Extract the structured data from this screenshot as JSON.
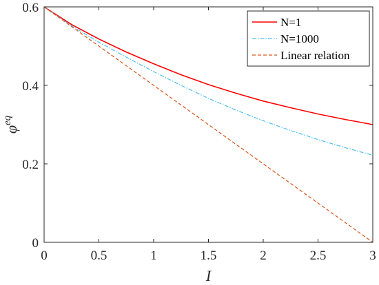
{
  "chart_data": {
    "type": "line",
    "xlabel": "I",
    "ylabel": "φ",
    "ylabel_superscript": "eq",
    "xlim": [
      0,
      3
    ],
    "ylim": [
      0,
      0.6
    ],
    "xticks": [
      0,
      0.5,
      1,
      1.5,
      2,
      2.5,
      3
    ],
    "xtick_labels": [
      "0",
      "0.5",
      "1",
      "1.5",
      "2",
      "2.5",
      "3"
    ],
    "yticks": [
      0,
      0.2,
      0.4,
      0.6
    ],
    "ytick_labels": [
      "0",
      "0.2",
      "0.4",
      "0.6"
    ],
    "grid": false,
    "legend_position": "top-right",
    "series": [
      {
        "name": "N=1",
        "color": "#ff0000",
        "style": "solid",
        "x": [
          0,
          0.25,
          0.5,
          0.75,
          1.0,
          1.25,
          1.5,
          1.75,
          2.0,
          2.25,
          2.5,
          2.75,
          3.0
        ],
        "y": [
          0.6,
          0.555,
          0.518,
          0.485,
          0.455,
          0.427,
          0.402,
          0.38,
          0.36,
          0.343,
          0.327,
          0.313,
          0.3
        ]
      },
      {
        "name": "N=1000",
        "color": "#4dbeee",
        "style": "dashdot",
        "x": [
          0,
          0.25,
          0.5,
          0.75,
          1.0,
          1.25,
          1.5,
          1.75,
          2.0,
          2.25,
          2.5,
          2.75,
          3.0
        ],
        "y": [
          0.6,
          0.552,
          0.51,
          0.472,
          0.435,
          0.4,
          0.367,
          0.337,
          0.31,
          0.285,
          0.262,
          0.241,
          0.222
        ]
      },
      {
        "name": "Linear relation",
        "color": "#d95319",
        "style": "dashed",
        "x": [
          0,
          3
        ],
        "y": [
          0.6,
          0.0
        ]
      }
    ]
  }
}
